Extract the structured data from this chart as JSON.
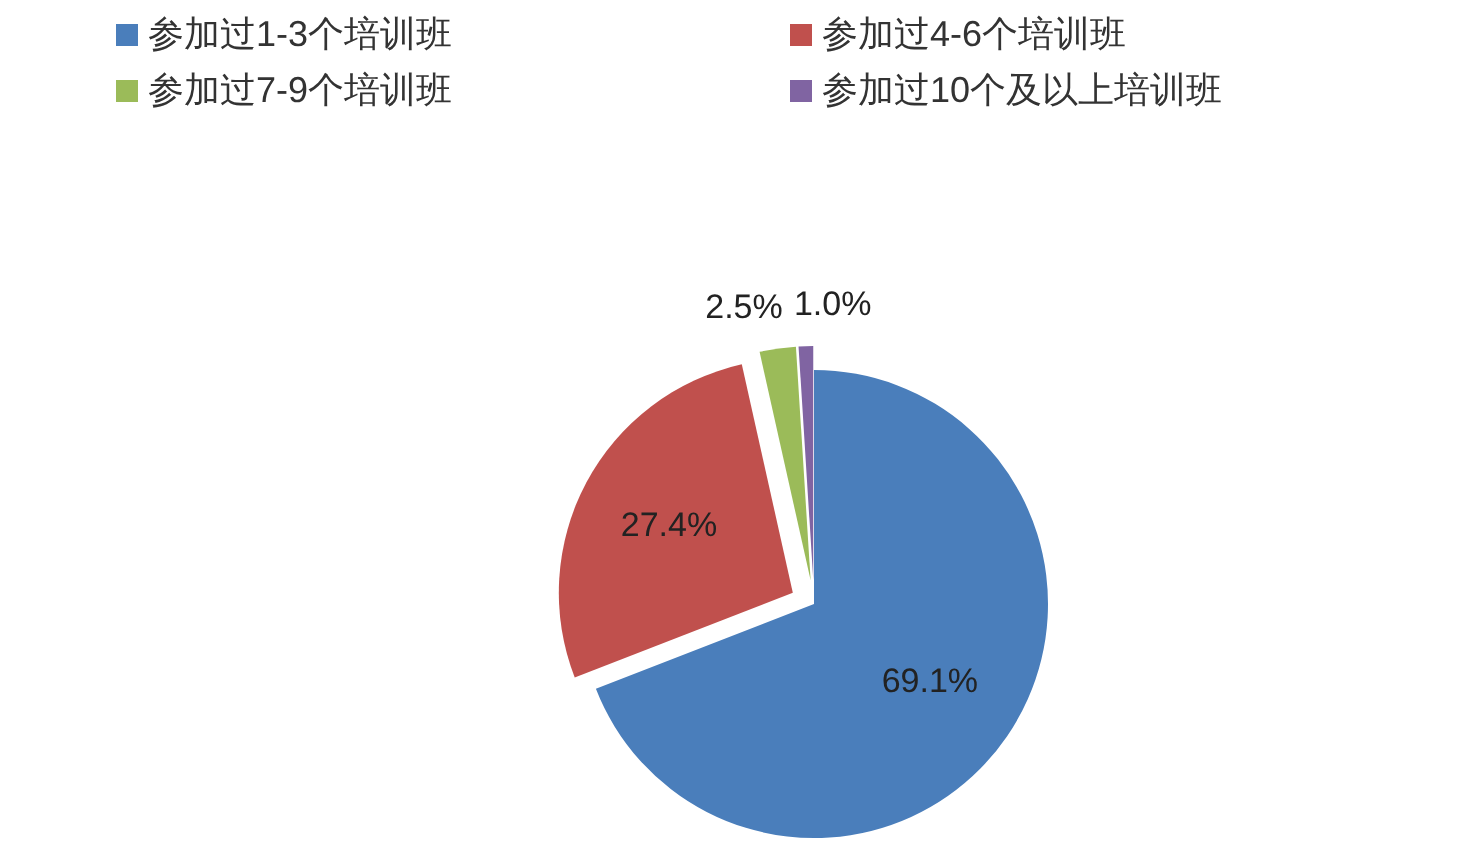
{
  "chart_data": {
    "type": "pie",
    "categories": [
      "参加过1-3个培训班",
      "参加过4-6个培训班",
      "参加过7-9个培训班",
      "参加过10个及以上培训班"
    ],
    "values": [
      69.1,
      27.4,
      2.5,
      1.0
    ],
    "colors": [
      "#4a7ebb",
      "#c0504d",
      "#9bbb59",
      "#8064a2"
    ],
    "value_labels": [
      "69.1%",
      "27.4%",
      "2.5%",
      "1.0%"
    ],
    "legend": "top"
  }
}
